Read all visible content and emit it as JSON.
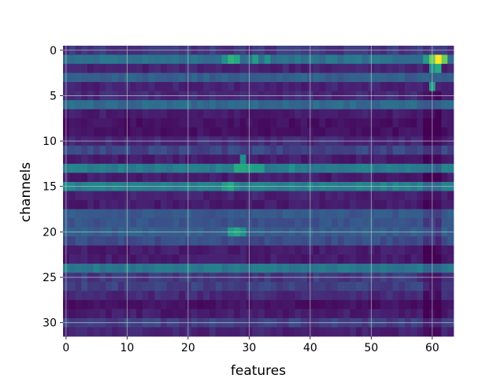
{
  "chart_data": {
    "type": "heatmap",
    "title": "",
    "xlabel": "features",
    "ylabel": "channels",
    "colormap": "viridis",
    "grid": true,
    "n_rows": 32,
    "n_cols": 64,
    "xlim": [
      -0.5,
      63.5
    ],
    "ylim": [
      31.5,
      -0.5
    ],
    "xticks": [
      0,
      10,
      20,
      30,
      40,
      50,
      60
    ],
    "yticks": [
      0,
      5,
      10,
      15,
      20,
      25,
      30
    ],
    "value_range": [
      0.0,
      1.0
    ],
    "row_values": [
      0.18,
      0.38,
      0.12,
      0.3,
      0.12,
      0.14,
      0.35,
      0.1,
      0.06,
      0.06,
      0.14,
      0.22,
      0.1,
      0.42,
      0.1,
      0.44,
      0.12,
      0.1,
      0.28,
      0.26,
      0.3,
      0.24,
      0.1,
      0.1,
      0.4,
      0.18,
      0.2,
      0.14,
      0.06,
      0.1,
      0.2,
      0.12
    ],
    "hotspots": [
      {
        "row": 1,
        "col": 61,
        "value": 1.0
      },
      {
        "row": 1,
        "col": 60,
        "value": 0.78
      },
      {
        "row": 1,
        "col": 62,
        "value": 0.78
      },
      {
        "row": 2,
        "col": 61,
        "value": 0.62
      },
      {
        "row": 2,
        "col": 60,
        "value": 0.5
      },
      {
        "row": 1,
        "col": 59,
        "value": 0.55
      },
      {
        "row": 1,
        "col": 27,
        "value": 0.65
      },
      {
        "row": 1,
        "col": 28,
        "value": 0.6
      },
      {
        "row": 1,
        "col": 26,
        "value": 0.5
      },
      {
        "row": 1,
        "col": 31,
        "value": 0.55
      },
      {
        "row": 1,
        "col": 33,
        "value": 0.5
      },
      {
        "row": 4,
        "col": 60,
        "value": 0.55
      },
      {
        "row": 12,
        "col": 29,
        "value": 0.48
      },
      {
        "row": 13,
        "col": 28,
        "value": 0.62
      },
      {
        "row": 13,
        "col": 29,
        "value": 0.6
      },
      {
        "row": 13,
        "col": 30,
        "value": 0.58
      },
      {
        "row": 13,
        "col": 31,
        "value": 0.55
      },
      {
        "row": 13,
        "col": 32,
        "value": 0.55
      },
      {
        "row": 13,
        "col": 37,
        "value": 0.5
      },
      {
        "row": 15,
        "col": 27,
        "value": 0.62
      },
      {
        "row": 15,
        "col": 26,
        "value": 0.55
      },
      {
        "row": 20,
        "col": 28,
        "value": 0.6
      },
      {
        "row": 20,
        "col": 27,
        "value": 0.55
      },
      {
        "row": 20,
        "col": 29,
        "value": 0.5
      }
    ]
  }
}
